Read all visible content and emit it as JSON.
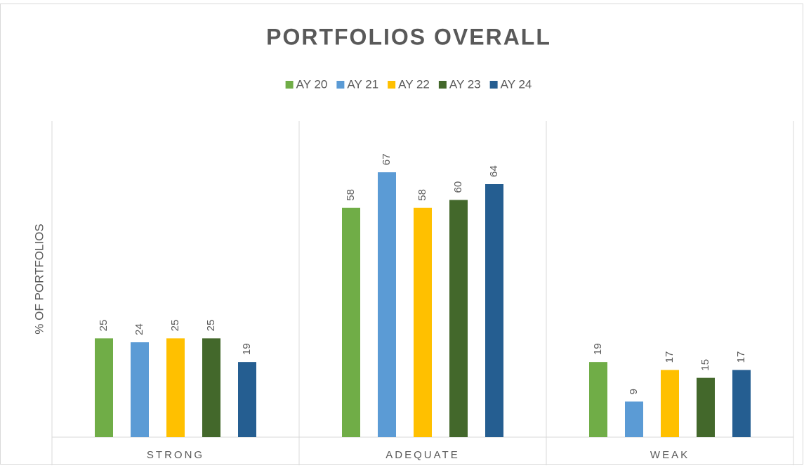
{
  "chart_data": {
    "type": "bar",
    "title": "PORTFOLIOS OVERALL",
    "y_label": "% OF PORTFOLIOS",
    "categories": [
      "STRONG",
      "ADEQUATE",
      "WEAK"
    ],
    "series": [
      {
        "name": "AY 20",
        "color": "#70ad47",
        "values": [
          25,
          58,
          19
        ]
      },
      {
        "name": "AY 21",
        "color": "#5b9bd5",
        "values": [
          24,
          67,
          9
        ]
      },
      {
        "name": "AY 22",
        "color": "#ffc000",
        "values": [
          25,
          58,
          17
        ]
      },
      {
        "name": "AY 23",
        "color": "#43682b",
        "values": [
          25,
          60,
          15
        ]
      },
      {
        "name": "AY 24",
        "color": "#255e91",
        "values": [
          19,
          64,
          17
        ]
      }
    ],
    "ylim": [
      0,
      80
    ],
    "legend": "top"
  }
}
